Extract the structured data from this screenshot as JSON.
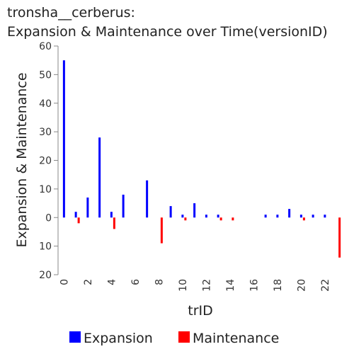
{
  "chart_data": {
    "type": "bar",
    "title_line1": "tronsha__cerberus:",
    "title_line2": "Expansion & Maintenance over Time(versionID)",
    "xlabel": "trID",
    "ylabel": "Expansion & Maintenance",
    "y_ticks": [
      {
        "value": 60,
        "label": "60"
      },
      {
        "value": 50,
        "label": "50"
      },
      {
        "value": 40,
        "label": "40"
      },
      {
        "value": 30,
        "label": "30"
      },
      {
        "value": 20,
        "label": "20"
      },
      {
        "value": 10,
        "label": "10"
      },
      {
        "value": 0,
        "label": "0"
      },
      {
        "value": -10,
        "label": "10"
      },
      {
        "value": -20,
        "label": "20"
      }
    ],
    "x_ticks": [
      "0",
      "2",
      "4",
      "6",
      "8",
      "10",
      "12",
      "14",
      "16",
      "18",
      "20",
      "22"
    ],
    "xlim": [
      -0.5,
      23.5
    ],
    "ylim": [
      -20,
      60
    ],
    "legend_placement": "bottom",
    "series": [
      {
        "name": "Expansion",
        "color": "#0000ff",
        "points": [
          {
            "x": 0,
            "y": 55
          },
          {
            "x": 1,
            "y": 2
          },
          {
            "x": 2,
            "y": 7
          },
          {
            "x": 3,
            "y": 28
          },
          {
            "x": 4,
            "y": 2
          },
          {
            "x": 5,
            "y": 8
          },
          {
            "x": 7,
            "y": 13
          },
          {
            "x": 9,
            "y": 4
          },
          {
            "x": 10,
            "y": 1
          },
          {
            "x": 11,
            "y": 5
          },
          {
            "x": 12,
            "y": 1
          },
          {
            "x": 13,
            "y": 1
          },
          {
            "x": 17,
            "y": 1
          },
          {
            "x": 18,
            "y": 1
          },
          {
            "x": 19,
            "y": 3
          },
          {
            "x": 20,
            "y": 1
          },
          {
            "x": 21,
            "y": 1
          },
          {
            "x": 22,
            "y": 1
          }
        ]
      },
      {
        "name": "Maintenance",
        "color": "#ff0000",
        "points": [
          {
            "x": 1,
            "y": -2
          },
          {
            "x": 4,
            "y": -4
          },
          {
            "x": 8,
            "y": -9
          },
          {
            "x": 10,
            "y": -1
          },
          {
            "x": 13,
            "y": -1
          },
          {
            "x": 14,
            "y": -1
          },
          {
            "x": 20,
            "y": -1
          },
          {
            "x": 23,
            "y": -14
          }
        ]
      }
    ]
  }
}
